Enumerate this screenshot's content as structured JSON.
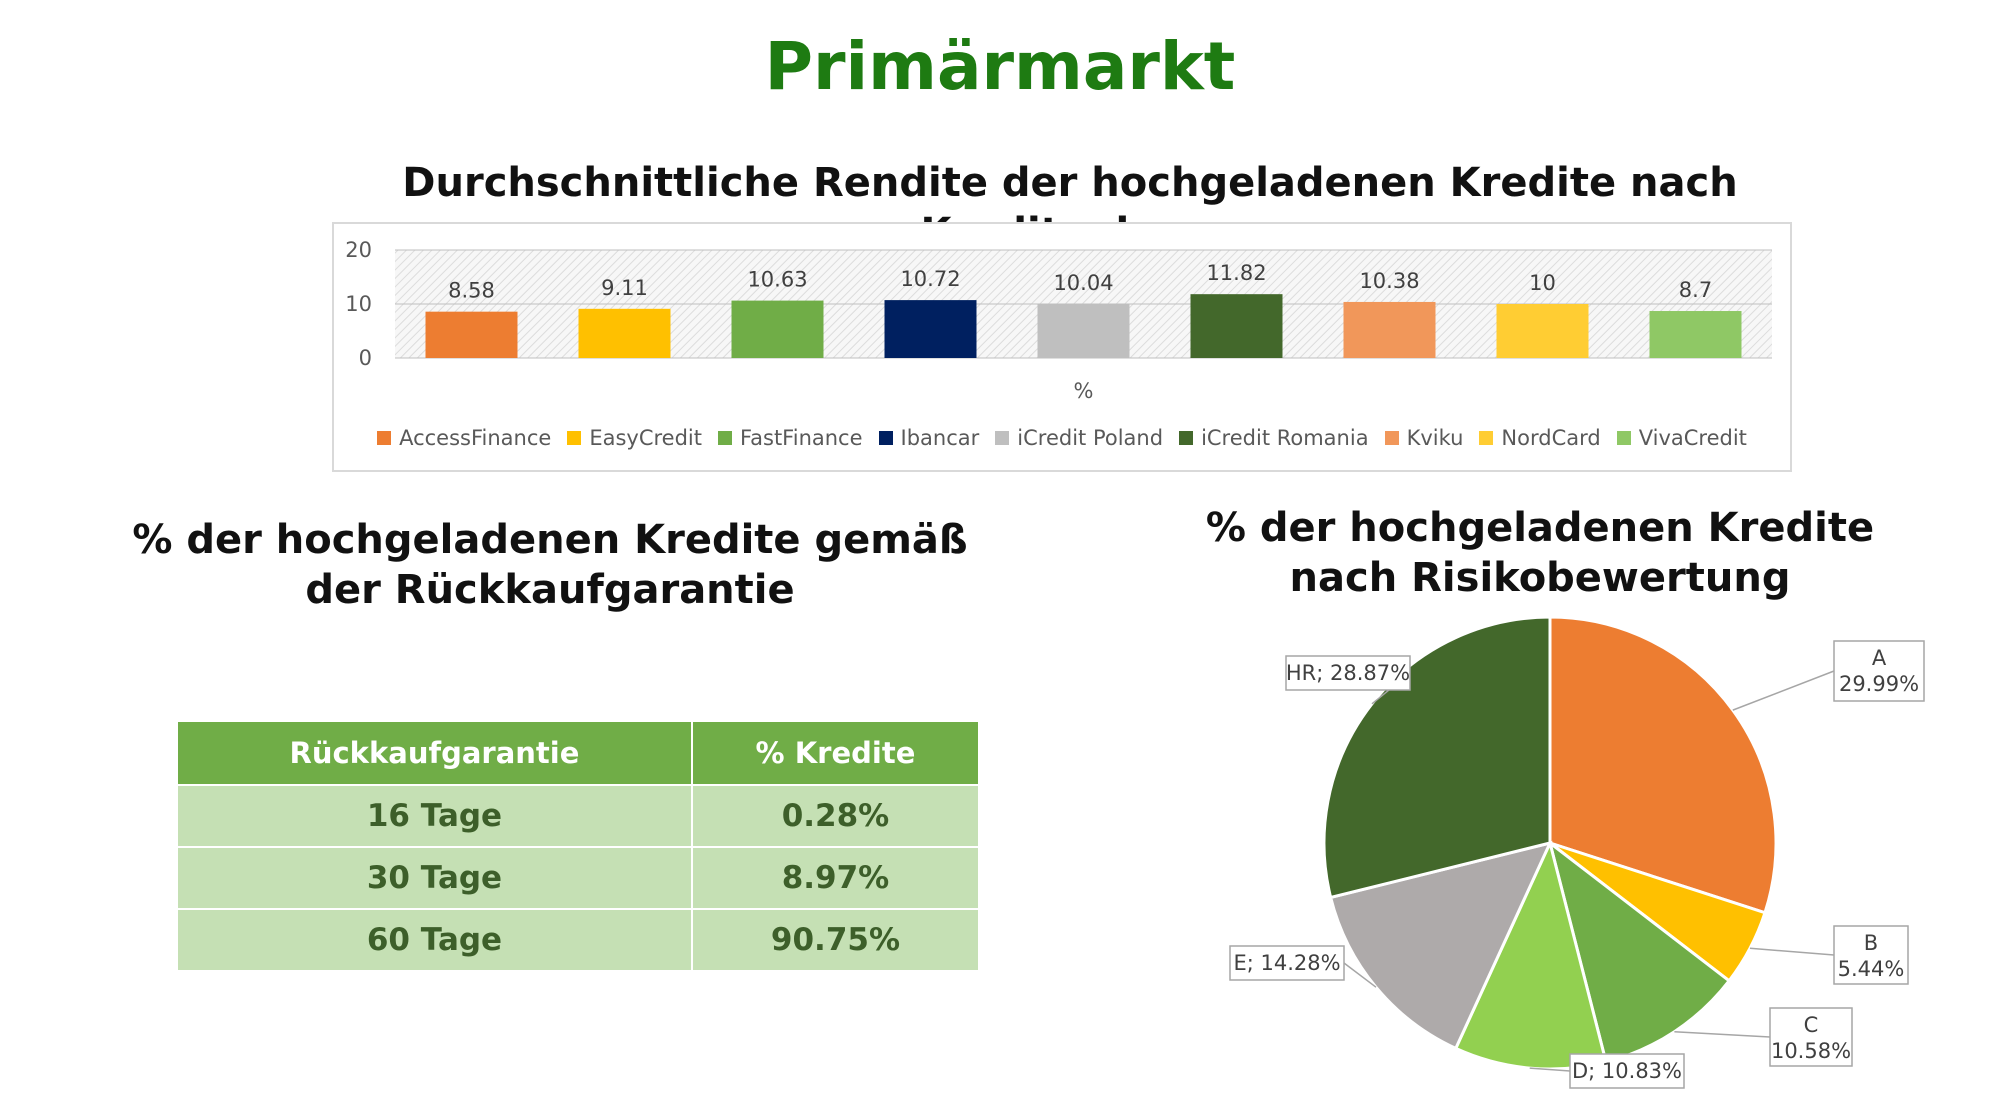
{
  "page": {
    "title": "Primärmarkt"
  },
  "chart_data": [
    {
      "type": "bar",
      "title": "Durchschnittliche Rendite der hochgeladenen Kredite nach Kreditgebern",
      "xlabel": "%",
      "ylabel": "",
      "ylim": [
        0,
        20
      ],
      "yticks": [
        0,
        10,
        20
      ],
      "categories": [
        "%"
      ],
      "series": [
        {
          "name": "AccessFinance",
          "values": [
            8.58
          ],
          "label": "8.58",
          "color": "#ed7d31"
        },
        {
          "name": "EasyCredit",
          "values": [
            9.11
          ],
          "label": "9.11",
          "color": "#ffc000"
        },
        {
          "name": "FastFinance",
          "values": [
            10.63
          ],
          "label": "10.63",
          "color": "#70ad47"
        },
        {
          "name": "Ibancar",
          "values": [
            10.72
          ],
          "label": "10.72",
          "color": "#002060"
        },
        {
          "name": "iCredit Poland",
          "values": [
            10.04
          ],
          "label": "10.04",
          "color": "#bfbfbf"
        },
        {
          "name": "iCredit Romania",
          "values": [
            11.82
          ],
          "label": "11.82",
          "color": "#43682b"
        },
        {
          "name": "Kviku",
          "values": [
            10.38
          ],
          "label": "10.38",
          "color": "#f1975a"
        },
        {
          "name": "NordCard",
          "values": [
            10
          ],
          "label": "10",
          "color": "#ffcd33"
        },
        {
          "name": "VivaCredit",
          "values": [
            8.7
          ],
          "label": "8.7",
          "color": "#8fc865"
        }
      ],
      "grid": true,
      "legend": "bottom"
    },
    {
      "type": "table",
      "title": "% der hochgeladenen Kredite gemäß der Rückkaufgarantie",
      "columns": [
        "Rückkaufgarantie",
        "% Kredite"
      ],
      "rows": [
        [
          "16 Tage",
          "0.28%"
        ],
        [
          "30 Tage",
          "8.97%"
        ],
        [
          "60 Tage",
          "90.75%"
        ]
      ]
    },
    {
      "type": "pie",
      "title": "% der hochgeladenen Kredite nach Risikobewertung",
      "slices": [
        {
          "name": "A",
          "value": 29.99,
          "label": "29.99%",
          "color": "#ed7d31"
        },
        {
          "name": "B",
          "value": 5.44,
          "label": "5.44%",
          "color": "#ffc000"
        },
        {
          "name": "C",
          "value": 10.58,
          "label": "10.58%",
          "color": "#70ad47"
        },
        {
          "name": "D",
          "value": 10.83,
          "label": "D; 10.83%",
          "color": "#92d050"
        },
        {
          "name": "E",
          "value": 14.28,
          "label": "E; 14.28%",
          "color": "#aeaaaa"
        },
        {
          "name": "HR",
          "value": 28.87,
          "label": "HR; 28.87%",
          "color": "#43682b"
        }
      ],
      "legend": "none"
    }
  ]
}
